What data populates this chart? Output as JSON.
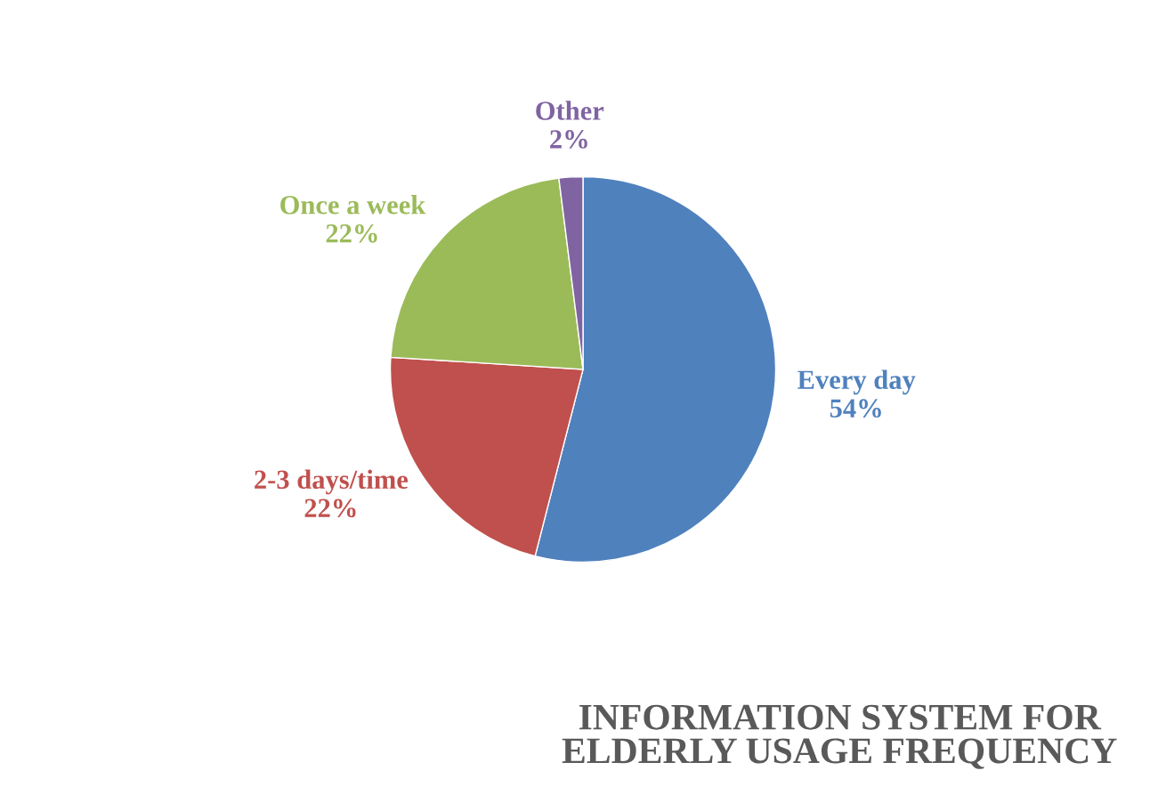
{
  "chart_data": {
    "type": "pie",
    "title": "INFORMATION SYSTEM FOR ELDERLY USAGE FREQUENCY",
    "categories": [
      "Every day",
      "2-3 days/time",
      "Once a week",
      "Other"
    ],
    "values": [
      54,
      22,
      22,
      2
    ],
    "value_labels": [
      "54%",
      "22%",
      "22%",
      "2%"
    ],
    "colors": [
      "#4f81bd",
      "#c0504d",
      "#9bbb59",
      "#8064a2"
    ],
    "legend": false
  }
}
